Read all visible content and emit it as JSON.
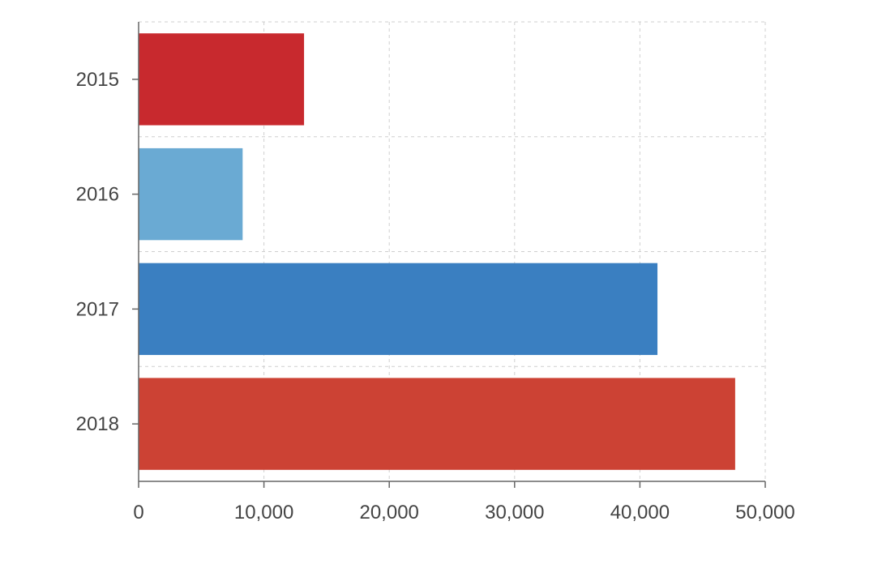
{
  "chart_data": {
    "type": "bar",
    "orientation": "horizontal",
    "categories": [
      "2015",
      "2016",
      "2017",
      "2018"
    ],
    "values": [
      13200,
      8300,
      41400,
      47600
    ],
    "colors": [
      "#c8292e",
      "#6aaad3",
      "#3a7fc1",
      "#cc4234"
    ],
    "title": "",
    "xlabel": "",
    "ylabel": "",
    "xlim": [
      0,
      50000
    ],
    "x_ticks": [
      0,
      10000,
      20000,
      30000,
      40000,
      50000
    ],
    "x_tick_labels": [
      "0",
      "10,000",
      "20,000",
      "30,000",
      "40,000",
      "50,000"
    ],
    "grid": true,
    "grid_style": "dashed",
    "legend": false
  }
}
